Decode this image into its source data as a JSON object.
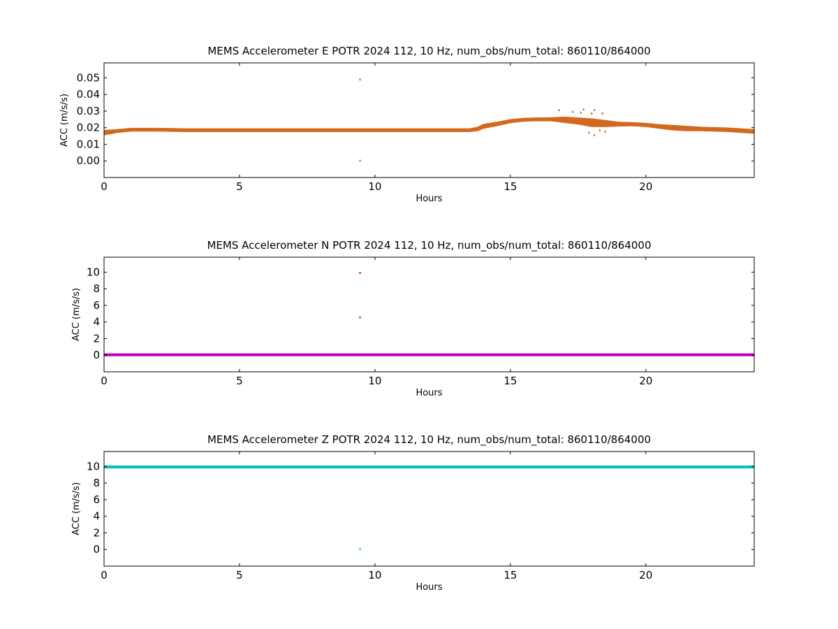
{
  "chart_data": [
    {
      "type": "scatter",
      "title": "MEMS Accelerometer E POTR 2024 112, 10 Hz, num_obs/num_total: 860110/864000",
      "xlabel": "Hours",
      "ylabel": "ACC (m/s/s)",
      "xlim": [
        0,
        24
      ],
      "ylim": [
        -0.01,
        0.059
      ],
      "xticks": [
        0,
        5,
        10,
        15,
        20
      ],
      "xtick_labels": [
        "0",
        "5",
        "10",
        "15",
        "20"
      ],
      "yticks": [
        0.0,
        0.01,
        0.02,
        0.03,
        0.04,
        0.05
      ],
      "ytick_labels": [
        "0.00",
        "0.01",
        "0.02",
        "0.03",
        "0.04",
        "0.05"
      ],
      "color": "#d2691e",
      "grid": false,
      "band": {
        "x": [
          0,
          0.5,
          1,
          2,
          3,
          4,
          5,
          6,
          7,
          8,
          9,
          10,
          11,
          12,
          13,
          13.5,
          13.8,
          14,
          14.5,
          15,
          15.5,
          16,
          16.5,
          17,
          17.5,
          18,
          18.5,
          19,
          19.5,
          20,
          20.5,
          21,
          21.5,
          22,
          22.5,
          23,
          23.5,
          24
        ],
        "lower": [
          0.0155,
          0.017,
          0.0178,
          0.0178,
          0.0175,
          0.0175,
          0.0175,
          0.0175,
          0.0175,
          0.0175,
          0.0175,
          0.0175,
          0.0175,
          0.0175,
          0.0175,
          0.0175,
          0.018,
          0.0195,
          0.021,
          0.0228,
          0.0238,
          0.024,
          0.024,
          0.023,
          0.022,
          0.0205,
          0.0205,
          0.0208,
          0.021,
          0.0205,
          0.0195,
          0.0185,
          0.018,
          0.018,
          0.0178,
          0.0175,
          0.017,
          0.0165
        ],
        "upper": [
          0.0185,
          0.019,
          0.0198,
          0.0198,
          0.0195,
          0.0195,
          0.0195,
          0.0195,
          0.0195,
          0.0195,
          0.0195,
          0.0195,
          0.0195,
          0.0195,
          0.0195,
          0.0195,
          0.0205,
          0.0222,
          0.0235,
          0.025,
          0.0258,
          0.026,
          0.0262,
          0.0265,
          0.026,
          0.0255,
          0.0245,
          0.0235,
          0.0232,
          0.0228,
          0.022,
          0.0215,
          0.021,
          0.0205,
          0.0202,
          0.02,
          0.0195,
          0.019
        ]
      },
      "outliers": [
        {
          "x": 9.45,
          "y": 0.049
        },
        {
          "x": 9.45,
          "y": 0.0001
        },
        {
          "x": 16.8,
          "y": 0.0305
        },
        {
          "x": 17.3,
          "y": 0.0295
        },
        {
          "x": 17.6,
          "y": 0.029
        },
        {
          "x": 17.7,
          "y": 0.031
        },
        {
          "x": 17.9,
          "y": 0.017
        },
        {
          "x": 18.0,
          "y": 0.0285
        },
        {
          "x": 18.1,
          "y": 0.0155
        },
        {
          "x": 18.1,
          "y": 0.0305
        },
        {
          "x": 18.3,
          "y": 0.0185
        },
        {
          "x": 18.4,
          "y": 0.0285
        },
        {
          "x": 18.5,
          "y": 0.0175
        }
      ]
    },
    {
      "type": "scatter",
      "title": "MEMS Accelerometer N POTR 2024 112, 10 Hz, num_obs/num_total: 860110/864000",
      "xlabel": "Hours",
      "ylabel": "ACC (m/s/s)",
      "xlim": [
        0,
        24
      ],
      "ylim": [
        -2,
        11.8
      ],
      "xticks": [
        0,
        5,
        10,
        15,
        20
      ],
      "xtick_labels": [
        "0",
        "5",
        "10",
        "15",
        "20"
      ],
      "yticks": [
        0,
        2,
        4,
        6,
        8,
        10
      ],
      "ytick_labels": [
        "0",
        "2",
        "4",
        "6",
        "8",
        "10"
      ],
      "color": "#bf00bf",
      "grid": false,
      "band": {
        "x": [
          0,
          24
        ],
        "lower": [
          -0.1,
          -0.1
        ],
        "upper": [
          0.2,
          0.2
        ]
      },
      "outliers": [
        {
          "x": 9.45,
          "y": 9.9
        },
        {
          "x": 9.45,
          "y": 4.55
        }
      ]
    },
    {
      "type": "scatter",
      "title": "MEMS Accelerometer Z POTR 2024 112, 10 Hz, num_obs/num_total: 860110/864000",
      "xlabel": "Hours",
      "ylabel": "ACC (m/s/s)",
      "xlim": [
        0,
        24
      ],
      "ylim": [
        -2,
        11.8
      ],
      "xticks": [
        0,
        5,
        10,
        15,
        20
      ],
      "xtick_labels": [
        "0",
        "5",
        "10",
        "15",
        "20"
      ],
      "yticks": [
        0,
        2,
        4,
        6,
        8,
        10
      ],
      "ytick_labels": [
        "0",
        "2",
        "4",
        "6",
        "8",
        "10"
      ],
      "color": "#00bfbf",
      "grid": false,
      "band": {
        "x": [
          0,
          24
        ],
        "lower": [
          9.78,
          9.78
        ],
        "upper": [
          10.08,
          10.08
        ]
      },
      "outliers": [
        {
          "x": 9.45,
          "y": 0.05
        }
      ]
    }
  ]
}
